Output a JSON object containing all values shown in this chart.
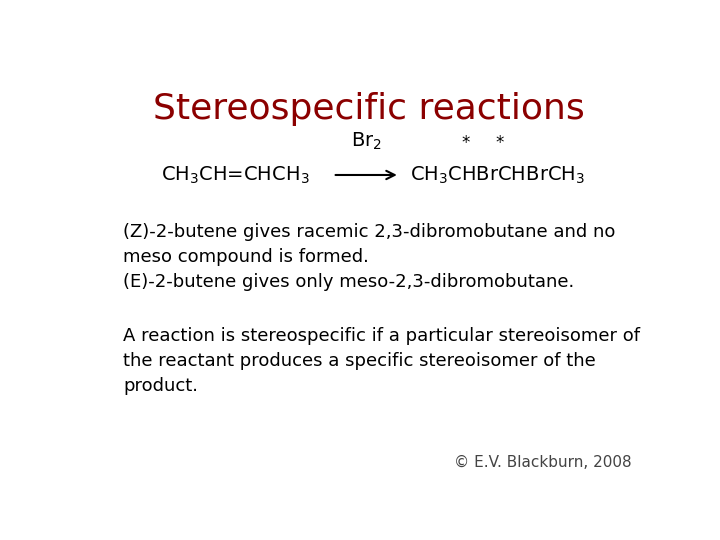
{
  "title": "Stereospecific reactions",
  "title_color": "#8B0000",
  "title_fontsize": 26,
  "background_color": "#ffffff",
  "reaction_reactant": "CH$_3$CH=CHCH$_3$",
  "reaction_arrow_label": "Br$_2$",
  "reaction_product": "CH$_3$CHBrCHBrCH$_3$",
  "text_lines": [
    "(Z)-2-butene gives racemic 2,3-dibromobutane and no\nmeso compound is formed.",
    "(E)-2-butene gives only meso-2,3-dibromobutane.",
    "A reaction is stereospecific if a particular stereoisomer of\nthe reactant produces a specific stereoisomer of the\nproduct."
  ],
  "text_fontsize": 13,
  "text_color": "#000000",
  "copyright": "© E.V. Blackburn, 2008",
  "copyright_fontsize": 11,
  "copyright_color": "#444444",
  "reaction_fontsize": 14
}
